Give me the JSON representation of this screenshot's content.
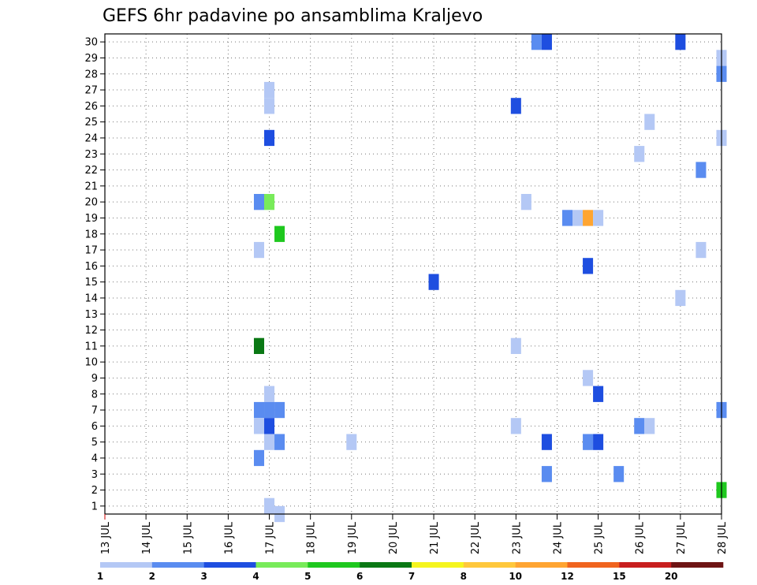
{
  "chart_data": {
    "type": "heatmap",
    "title": "GEFS 6hr padavine po ansamblima Kraljevo",
    "xlabel": "",
    "ylabel": "",
    "x_ticks": [
      "13 JUL",
      "14 JUL",
      "15 JUL",
      "16 JUL",
      "17 JUL",
      "18 JUL",
      "19 JUL",
      "20 JUL",
      "21 JUL",
      "22 JUL",
      "23 JUL",
      "24 JUL",
      "25 JUL",
      "26 JUL",
      "27 JUL",
      "28 JUL"
    ],
    "y_ticks": [
      1,
      2,
      3,
      4,
      5,
      6,
      7,
      8,
      9,
      10,
      11,
      12,
      13,
      14,
      15,
      16,
      17,
      18,
      19,
      20,
      21,
      22,
      23,
      24,
      25,
      26,
      27,
      28,
      29,
      30
    ],
    "xlim_days": [
      13,
      28
    ],
    "ylim": [
      0.5,
      30.5
    ],
    "grid": true,
    "colorbar": {
      "labels": [
        "1",
        "2",
        "3",
        "4",
        "5",
        "6",
        "7",
        "8",
        "10",
        "12",
        "15",
        "20"
      ],
      "colors": [
        "#b4c8f5",
        "#5a8cf0",
        "#1e4ee0",
        "#78eb5a",
        "#1ec81e",
        "#0a7814",
        "#f5f51e",
        "#ffc83c",
        "#ffa532",
        "#f0641e",
        "#c81e1e",
        "#6e1414"
      ]
    },
    "cells": [
      {
        "day": 23.5,
        "member": 30,
        "color": "#5a8cf0"
      },
      {
        "day": 23.75,
        "member": 30,
        "color": "#1e4ee0"
      },
      {
        "day": 27.0,
        "member": 30,
        "color": "#1e4ee0"
      },
      {
        "day": 28.0,
        "member": 29,
        "color": "#b4c8f5"
      },
      {
        "day": 28.0,
        "member": 28,
        "color": "#5a8cf0"
      },
      {
        "day": 17.0,
        "member": 27,
        "color": "#b4c8f5"
      },
      {
        "day": 17.0,
        "member": 26,
        "color": "#b4c8f5"
      },
      {
        "day": 23.0,
        "member": 26,
        "color": "#1e4ee0"
      },
      {
        "day": 26.25,
        "member": 25,
        "color": "#b4c8f5"
      },
      {
        "day": 17.0,
        "member": 24,
        "color": "#1e4ee0"
      },
      {
        "day": 28.0,
        "member": 24,
        "color": "#b4c8f5"
      },
      {
        "day": 26.0,
        "member": 23,
        "color": "#b4c8f5"
      },
      {
        "day": 27.5,
        "member": 22,
        "color": "#5a8cf0"
      },
      {
        "day": 16.75,
        "member": 20,
        "color": "#5a8cf0"
      },
      {
        "day": 17.0,
        "member": 20,
        "color": "#78eb5a"
      },
      {
        "day": 23.25,
        "member": 20,
        "color": "#b4c8f5"
      },
      {
        "day": 24.25,
        "member": 19,
        "color": "#5a8cf0"
      },
      {
        "day": 24.5,
        "member": 19,
        "color": "#b4c8f5"
      },
      {
        "day": 24.75,
        "member": 19,
        "color": "#ffa532"
      },
      {
        "day": 25.0,
        "member": 19,
        "color": "#b4c8f5"
      },
      {
        "day": 17.25,
        "member": 18,
        "color": "#1ec81e"
      },
      {
        "day": 16.75,
        "member": 17,
        "color": "#b4c8f5"
      },
      {
        "day": 27.5,
        "member": 17,
        "color": "#b4c8f5"
      },
      {
        "day": 24.75,
        "member": 16,
        "color": "#1e4ee0"
      },
      {
        "day": 21.0,
        "member": 15,
        "color": "#1e4ee0"
      },
      {
        "day": 27.0,
        "member": 14,
        "color": "#b4c8f5"
      },
      {
        "day": 16.75,
        "member": 11,
        "color": "#0a7814"
      },
      {
        "day": 23.0,
        "member": 11,
        "color": "#b4c8f5"
      },
      {
        "day": 24.75,
        "member": 9,
        "color": "#b4c8f5"
      },
      {
        "day": 17.0,
        "member": 8,
        "color": "#b4c8f5"
      },
      {
        "day": 25.0,
        "member": 8,
        "color": "#1e4ee0"
      },
      {
        "day": 16.75,
        "member": 7,
        "color": "#5a8cf0"
      },
      {
        "day": 17.0,
        "member": 7,
        "color": "#5a8cf0"
      },
      {
        "day": 17.25,
        "member": 7,
        "color": "#5a8cf0"
      },
      {
        "day": 28.0,
        "member": 7,
        "color": "#5a8cf0"
      },
      {
        "day": 16.75,
        "member": 6,
        "color": "#b4c8f5"
      },
      {
        "day": 17.0,
        "member": 6,
        "color": "#1e4ee0"
      },
      {
        "day": 23.0,
        "member": 6,
        "color": "#b4c8f5"
      },
      {
        "day": 26.0,
        "member": 6,
        "color": "#5a8cf0"
      },
      {
        "day": 26.25,
        "member": 6,
        "color": "#b4c8f5"
      },
      {
        "day": 17.0,
        "member": 5,
        "color": "#b4c8f5"
      },
      {
        "day": 17.25,
        "member": 5,
        "color": "#5a8cf0"
      },
      {
        "day": 19.0,
        "member": 5,
        "color": "#b4c8f5"
      },
      {
        "day": 23.75,
        "member": 5,
        "color": "#1e4ee0"
      },
      {
        "day": 24.75,
        "member": 5,
        "color": "#5a8cf0"
      },
      {
        "day": 25.0,
        "member": 5,
        "color": "#1e4ee0"
      },
      {
        "day": 16.75,
        "member": 4,
        "color": "#5a8cf0"
      },
      {
        "day": 23.75,
        "member": 3,
        "color": "#5a8cf0"
      },
      {
        "day": 25.5,
        "member": 3,
        "color": "#5a8cf0"
      },
      {
        "day": 28.0,
        "member": 2,
        "color": "#1ec81e"
      },
      {
        "day": 17.0,
        "member": 1,
        "color": "#b4c8f5"
      },
      {
        "day": 17.25,
        "member": 0.5,
        "color": "#b4c8f5"
      }
    ]
  }
}
